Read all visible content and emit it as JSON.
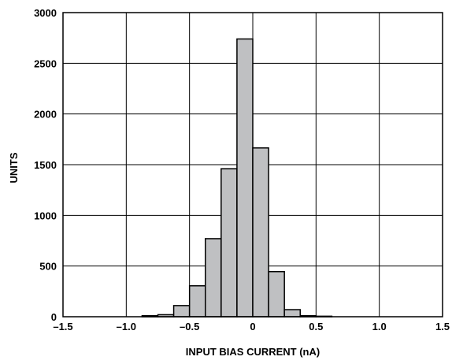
{
  "chart_data": {
    "type": "bar",
    "xlabel": "INPUT BIAS CURRENT (nA)",
    "ylabel": "UNITS",
    "xlim": [
      -1.5,
      1.5
    ],
    "ylim": [
      0,
      3000
    ],
    "x_ticks": [
      -1.5,
      -1.0,
      -0.5,
      0,
      0.5,
      1.0,
      1.5
    ],
    "x_tick_labels": [
      "–1.5",
      "–1.0",
      "–0.5",
      "0",
      "0.5",
      "1.0",
      "1.5"
    ],
    "y_ticks": [
      0,
      500,
      1000,
      1500,
      2000,
      2500,
      3000
    ],
    "y_tick_labels": [
      "0",
      "500",
      "1000",
      "1500",
      "2000",
      "2500",
      "3000"
    ],
    "grid": true,
    "bin_width": 0.125,
    "bins": [
      {
        "x": -0.875,
        "value": 10
      },
      {
        "x": -0.75,
        "value": 20
      },
      {
        "x": -0.625,
        "value": 110
      },
      {
        "x": -0.5,
        "value": 305
      },
      {
        "x": -0.375,
        "value": 770
      },
      {
        "x": -0.25,
        "value": 1460
      },
      {
        "x": -0.125,
        "value": 2740
      },
      {
        "x": 0.0,
        "value": 1665
      },
      {
        "x": 0.125,
        "value": 445
      },
      {
        "x": 0.25,
        "value": 70
      },
      {
        "x": 0.375,
        "value": 10
      },
      {
        "x": 0.5,
        "value": 5
      }
    ],
    "colors": {
      "bar_fill": "#bfc0c2",
      "bar_edge": "#000000",
      "grid": "#000000"
    }
  }
}
